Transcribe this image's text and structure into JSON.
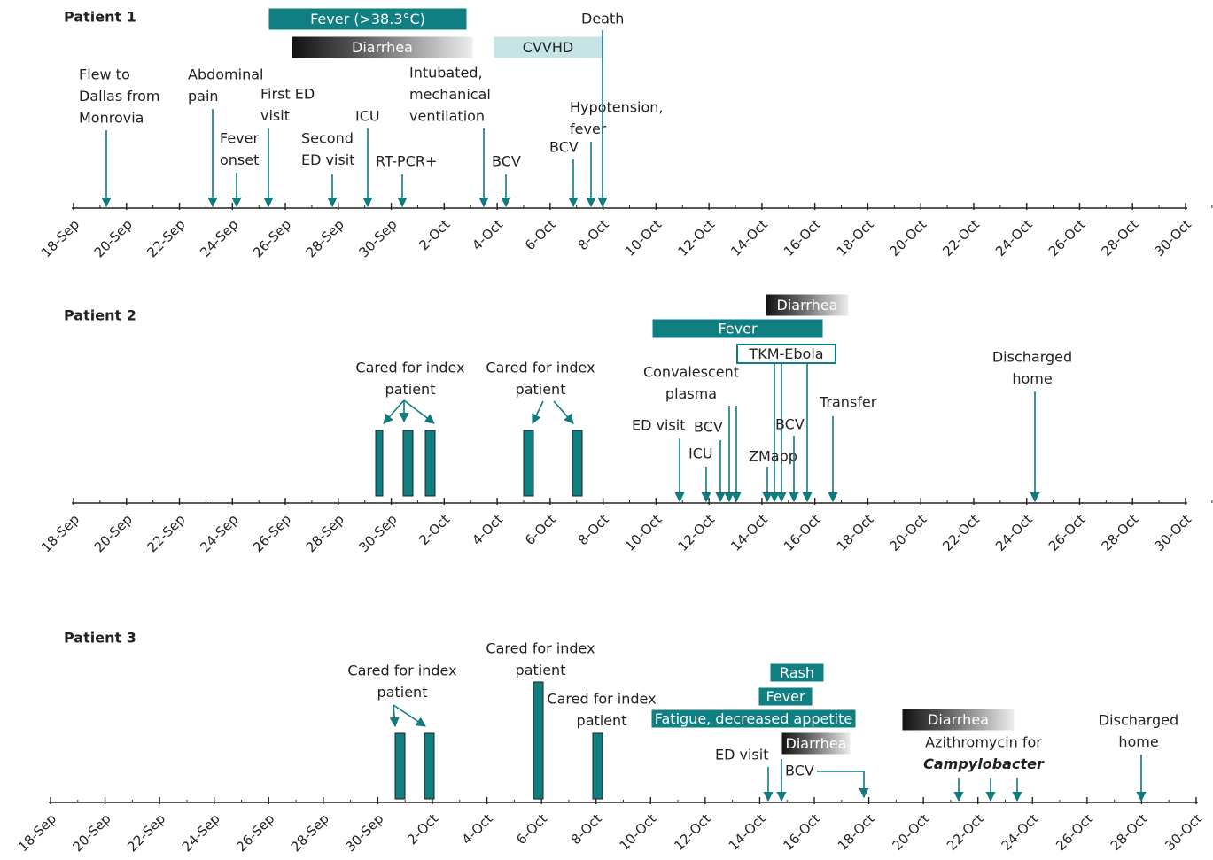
{
  "timeline_ticks": [
    "18-Sep",
    "20-Sep",
    "22-Sep",
    "24-Sep",
    "26-Sep",
    "28-Sep",
    "30-Sep",
    "2-Oct",
    "4-Oct",
    "6-Oct",
    "8-Oct",
    "10-Oct",
    "12-Oct",
    "14-Oct",
    "16-Oct",
    "18-Oct",
    "20-Oct",
    "22-Oct",
    "24-Oct",
    "26-Oct",
    "28-Oct",
    "30-Oct"
  ],
  "panels": [
    {
      "title": "Patient 1",
      "bars": [
        {
          "label": "Fever (>38.3°C)"
        },
        {
          "label": "Diarrhea"
        },
        {
          "label": "CVVHD"
        }
      ],
      "events": [
        {
          "lines": [
            "Flew to",
            "Dallas from",
            "Monrovia"
          ]
        },
        {
          "lines": [
            "Abdominal",
            "pain"
          ]
        },
        {
          "lines": [
            "Fever",
            "onset"
          ]
        },
        {
          "lines": [
            "First ED",
            "visit"
          ]
        },
        {
          "lines": [
            "Second",
            "ED visit"
          ]
        },
        {
          "lines": [
            "ICU"
          ]
        },
        {
          "lines": [
            "RT-PCR+"
          ]
        },
        {
          "lines": [
            "Intubated,",
            "mechanical",
            "ventilation"
          ]
        },
        {
          "lines": [
            "BCV"
          ]
        },
        {
          "lines": [
            "BCV"
          ]
        },
        {
          "lines": [
            "Hypotension,",
            "fever"
          ]
        },
        {
          "lines": [
            "Death"
          ]
        }
      ],
      "groups": []
    },
    {
      "title": "Patient 2",
      "bars": [
        {
          "label": "Diarrhea"
        },
        {
          "label": "Fever"
        },
        {
          "label": "TKM-Ebola"
        }
      ],
      "events": [
        {
          "lines": [
            "Convalescent",
            "plasma"
          ]
        },
        {
          "lines": [
            "ED visit"
          ]
        },
        {
          "lines": [
            "BCV"
          ]
        },
        {
          "lines": [
            "ICU"
          ]
        },
        {
          "lines": [
            "ZMapp"
          ]
        },
        {
          "lines": [
            "BCV"
          ]
        },
        {
          "lines": [
            "Transfer"
          ]
        },
        {
          "lines": [
            "Discharged",
            "home"
          ]
        }
      ],
      "groups": [
        {
          "lines": [
            "Cared for index",
            "patient"
          ]
        },
        {
          "lines": [
            "Cared for index",
            "patient"
          ]
        }
      ]
    },
    {
      "title": "Patient 3",
      "bars": [
        {
          "label": "Rash"
        },
        {
          "label": "Fever"
        },
        {
          "label": "Fatigue, decreased appetite"
        },
        {
          "label": "Diarrhea"
        },
        {
          "label": "Diarrhea"
        }
      ],
      "events": [
        {
          "lines": [
            "ED visit"
          ]
        },
        {
          "lines": [
            "BCV"
          ]
        },
        {
          "lines": [
            "Azithromycin for",
            "Campylobacter"
          ]
        },
        {
          "lines": [
            "Discharged",
            "home"
          ]
        }
      ],
      "groups": [
        {
          "lines": [
            "Cared for index",
            "patient"
          ]
        },
        {
          "lines": [
            "Cared for index",
            "patient"
          ]
        },
        {
          "lines": [
            "Cared for index",
            "patient"
          ]
        }
      ]
    }
  ]
}
